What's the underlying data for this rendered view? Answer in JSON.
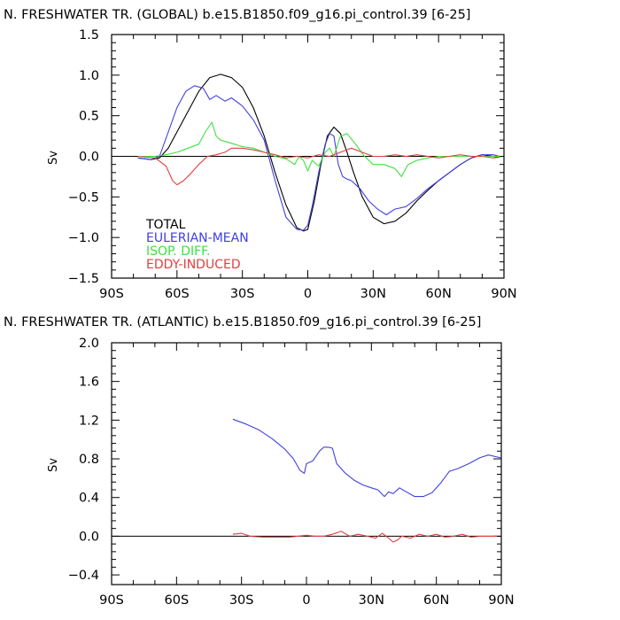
{
  "chart_data": [
    {
      "type": "line",
      "title": "N. FRESHWATER TR. (GLOBAL) b.e15.B1850.f09_g16.pi_control.39  [6-25]",
      "ylabel": "Sv",
      "xlim": [
        -90,
        90
      ],
      "ylim": [
        -1.5,
        1.5
      ],
      "x_ticks": [
        -90,
        -60,
        -30,
        0,
        30,
        60,
        90
      ],
      "x_tick_labels": [
        "90S",
        "60S",
        "30S",
        "0",
        "30N",
        "60N",
        "90N"
      ],
      "y_ticks": [
        -1.5,
        -1.0,
        -0.5,
        0.0,
        0.5,
        1.0,
        1.5
      ],
      "y_tick_labels": [
        "−1.5",
        "−1.0",
        "−0.5",
        "0.0",
        "0.5",
        "1.0",
        "1.5"
      ],
      "legend_position": "lower-left",
      "series": [
        {
          "name": "TOTAL",
          "color": "#000000",
          "x": [
            -78,
            -72,
            -68,
            -64,
            -60,
            -55,
            -50,
            -45,
            -40,
            -35,
            -30,
            -25,
            -20,
            -15,
            -10,
            -5,
            -2,
            0,
            3,
            6,
            9,
            12,
            15,
            18,
            21,
            25,
            30,
            35,
            40,
            45,
            50,
            55,
            60,
            65,
            70,
            75,
            80,
            85,
            88
          ],
          "y": [
            -0.02,
            -0.04,
            -0.02,
            0.1,
            0.3,
            0.55,
            0.8,
            0.97,
            1.01,
            0.97,
            0.85,
            0.6,
            0.25,
            -0.2,
            -0.6,
            -0.88,
            -0.92,
            -0.9,
            -0.55,
            -0.1,
            0.25,
            0.36,
            0.28,
            0.05,
            -0.2,
            -0.5,
            -0.75,
            -0.83,
            -0.8,
            -0.7,
            -0.55,
            -0.42,
            -0.3,
            -0.2,
            -0.1,
            -0.02,
            0.02,
            0.0,
            -0.01
          ]
        },
        {
          "name": "EULERIAN-MEAN",
          "color": "#4040e0",
          "x": [
            -78,
            -72,
            -68,
            -64,
            -60,
            -56,
            -52,
            -48,
            -45,
            -42,
            -38,
            -35,
            -30,
            -25,
            -20,
            -15,
            -10,
            -5,
            -2,
            0,
            2,
            5,
            8,
            10,
            12,
            14,
            16,
            18,
            20,
            24,
            28,
            32,
            36,
            40,
            45,
            50,
            55,
            60,
            65,
            70,
            75,
            80,
            85,
            88
          ],
          "y": [
            -0.02,
            -0.04,
            0.0,
            0.3,
            0.6,
            0.8,
            0.87,
            0.84,
            0.7,
            0.75,
            0.68,
            0.72,
            0.62,
            0.45,
            0.2,
            -0.3,
            -0.75,
            -0.9,
            -0.91,
            -0.85,
            -0.62,
            -0.2,
            0.15,
            0.28,
            0.25,
            -0.1,
            -0.25,
            -0.28,
            -0.3,
            -0.4,
            -0.55,
            -0.65,
            -0.72,
            -0.65,
            -0.62,
            -0.52,
            -0.4,
            -0.3,
            -0.2,
            -0.1,
            -0.02,
            0.02,
            0.02,
            0.0
          ]
        },
        {
          "name": "ISOP. DIFF.",
          "color": "#40e040",
          "x": [
            -78,
            -70,
            -65,
            -60,
            -55,
            -50,
            -47,
            -44,
            -42,
            -40,
            -35,
            -30,
            -25,
            -20,
            -15,
            -10,
            -6,
            -4,
            -2,
            0,
            2,
            5,
            8,
            10,
            12,
            15,
            18,
            22,
            26,
            30,
            35,
            40,
            43,
            46,
            50,
            55,
            60,
            65,
            70,
            75,
            80,
            85,
            88
          ],
          "y": [
            0.0,
            0.0,
            0.02,
            0.05,
            0.1,
            0.15,
            0.3,
            0.42,
            0.25,
            0.2,
            0.16,
            0.12,
            0.1,
            0.05,
            0.0,
            -0.03,
            -0.1,
            0.0,
            -0.05,
            -0.18,
            -0.05,
            -0.12,
            0.05,
            0.1,
            0.0,
            0.25,
            0.28,
            0.15,
            0.0,
            -0.1,
            -0.1,
            -0.15,
            -0.25,
            -0.1,
            -0.05,
            -0.02,
            0.0,
            0.0,
            0.0,
            0.0,
            0.0,
            0.0,
            0.0
          ]
        },
        {
          "name": "EDDY-INDUCED",
          "color": "#e04040",
          "x": [
            -78,
            -70,
            -65,
            -62,
            -60,
            -57,
            -54,
            -50,
            -46,
            -42,
            -38,
            -35,
            -30,
            -25,
            -20,
            -15,
            -10,
            -5,
            0,
            5,
            10,
            15,
            20,
            25,
            30,
            35,
            40,
            45,
            50,
            55,
            60,
            65,
            70,
            75,
            80,
            85,
            88
          ],
          "y": [
            0.0,
            -0.02,
            -0.12,
            -0.3,
            -0.35,
            -0.3,
            -0.22,
            -0.1,
            0.0,
            0.02,
            0.05,
            0.1,
            0.1,
            0.08,
            0.05,
            0.02,
            -0.02,
            0.0,
            -0.02,
            0.02,
            0.0,
            0.05,
            0.1,
            0.05,
            0.0,
            0.0,
            0.02,
            0.0,
            0.02,
            0.0,
            -0.02,
            0.0,
            0.02,
            0.0,
            0.0,
            -0.02,
            -0.01
          ]
        }
      ]
    },
    {
      "type": "line",
      "title": "N. FRESHWATER TR. (ATLANTIC) b.e15.B1850.f09_g16.pi_control.39  [6-25]",
      "ylabel": "Sv",
      "xlim": [
        -90,
        90
      ],
      "ylim": [
        -0.5,
        2.0
      ],
      "x_ticks": [
        -90,
        -60,
        -30,
        0,
        30,
        60,
        90
      ],
      "x_tick_labels": [
        "90S",
        "60S",
        "30S",
        "0",
        "30N",
        "60N",
        "90N"
      ],
      "y_ticks": [
        -0.4,
        0.0,
        0.4,
        0.8,
        1.2,
        1.6,
        2.0
      ],
      "y_tick_labels": [
        "−0.4",
        "0.0",
        "0.4",
        "0.8",
        "1.2",
        "1.6",
        "2.0"
      ],
      "series": [
        {
          "color": "#4040e0",
          "x": [
            -34,
            -28,
            -22,
            -16,
            -10,
            -6,
            -3,
            -1,
            0,
            3,
            6,
            8,
            10,
            12,
            14,
            18,
            22,
            26,
            30,
            33,
            36,
            38,
            40,
            43,
            46,
            50,
            54,
            58,
            62,
            66,
            70,
            75,
            80,
            84,
            88,
            90
          ],
          "y": [
            1.21,
            1.16,
            1.1,
            1.01,
            0.9,
            0.8,
            0.68,
            0.65,
            0.75,
            0.78,
            0.88,
            0.92,
            0.92,
            0.91,
            0.75,
            0.65,
            0.58,
            0.53,
            0.5,
            0.48,
            0.41,
            0.46,
            0.44,
            0.5,
            0.46,
            0.41,
            0.41,
            0.45,
            0.55,
            0.67,
            0.7,
            0.75,
            0.81,
            0.84,
            0.82,
            0.81
          ]
        },
        {
          "color": "#e04040",
          "x": [
            -34,
            -30,
            -26,
            -20,
            -14,
            -8,
            -4,
            0,
            4,
            8,
            12,
            16,
            20,
            24,
            28,
            32,
            35,
            38,
            40,
            42,
            44,
            48,
            52,
            56,
            60,
            64,
            68,
            72,
            76,
            80,
            84,
            88
          ],
          "y": [
            0.02,
            0.03,
            0.0,
            -0.01,
            -0.01,
            -0.01,
            0.0,
            0.01,
            0.0,
            0.0,
            0.02,
            0.05,
            0.0,
            0.02,
            0.0,
            -0.02,
            0.03,
            -0.02,
            -0.06,
            -0.04,
            0.0,
            -0.02,
            0.02,
            0.0,
            0.02,
            -0.01,
            0.0,
            0.02,
            -0.01,
            0.0,
            0.0,
            0.0
          ]
        }
      ]
    }
  ]
}
